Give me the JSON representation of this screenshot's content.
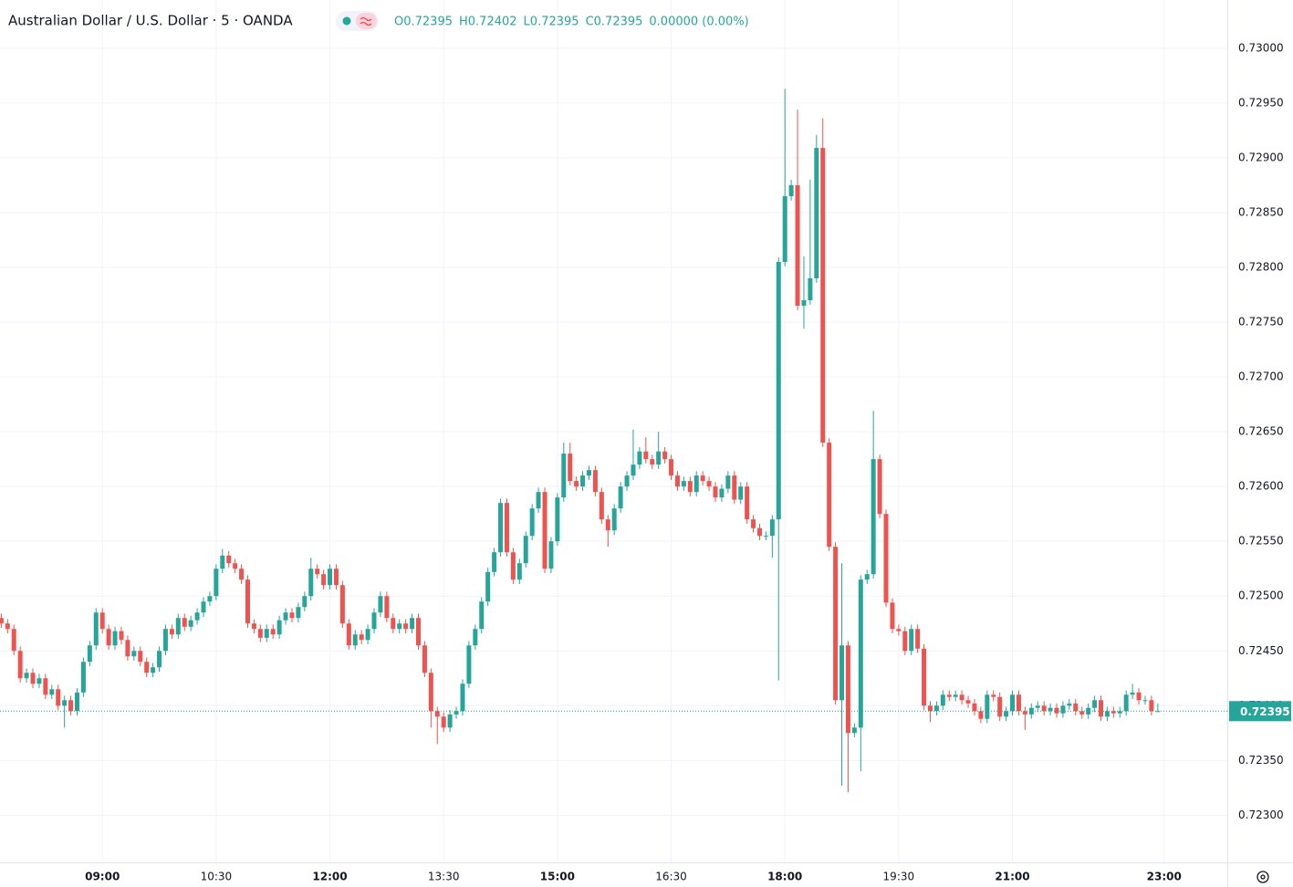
{
  "chart_data": {
    "type": "candlestick",
    "title": "Australian Dollar / U.S. Dollar · 5 · OANDA",
    "ohlc_labels": [
      "O",
      "H",
      "L",
      "C"
    ],
    "change": "0.00000 (0.00%)",
    "up_color": "#26a69a",
    "down_color": "#ef5350",
    "grid": true,
    "xlim": [
      "07:39",
      "23:50"
    ],
    "xticks": [
      "09:00",
      "10:30",
      "12:00",
      "13:30",
      "15:00",
      "16:30",
      "18:00",
      "19:30",
      "21:00",
      "23:00"
    ],
    "ylim": [
      0.72257,
      0.73044
    ],
    "yticks": [
      {
        "value": 0.723,
        "label": "0.72300"
      },
      {
        "value": 0.7235,
        "label": "0.72350"
      },
      {
        "value": 0.724,
        "label": "0.72400"
      },
      {
        "value": 0.7245,
        "label": "0.72450"
      },
      {
        "value": 0.725,
        "label": "0.72500"
      },
      {
        "value": 0.7255,
        "label": "0.72550"
      },
      {
        "value": 0.726,
        "label": "0.72600"
      },
      {
        "value": 0.7265,
        "label": "0.72650"
      },
      {
        "value": 0.727,
        "label": "0.72700"
      },
      {
        "value": 0.7275,
        "label": "0.72750"
      },
      {
        "value": 0.728,
        "label": "0.72800"
      },
      {
        "value": 0.7285,
        "label": "0.72850"
      },
      {
        "value": 0.729,
        "label": "0.72900"
      },
      {
        "value": 0.7295,
        "label": "0.72950"
      },
      {
        "value": 0.73,
        "label": "0.73000"
      }
    ],
    "x": [
      "07:40",
      "07:45",
      "07:50",
      "07:55",
      "08:00",
      "08:05",
      "08:10",
      "08:15",
      "08:20",
      "08:25",
      "08:30",
      "08:35",
      "08:40",
      "08:45",
      "08:50",
      "08:55",
      "09:00",
      "09:05",
      "09:10",
      "09:15",
      "09:20",
      "09:25",
      "09:30",
      "09:35",
      "09:40",
      "09:45",
      "09:50",
      "09:55",
      "10:00",
      "10:05",
      "10:10",
      "10:15",
      "10:20",
      "10:25",
      "10:30",
      "10:35",
      "10:40",
      "10:45",
      "10:50",
      "10:55",
      "11:00",
      "11:05",
      "11:10",
      "11:15",
      "11:20",
      "11:25",
      "11:30",
      "11:35",
      "11:40",
      "11:45",
      "11:50",
      "11:55",
      "12:00",
      "12:05",
      "12:10",
      "12:15",
      "12:20",
      "12:25",
      "12:30",
      "12:35",
      "12:40",
      "12:45",
      "12:50",
      "12:55",
      "13:00",
      "13:05",
      "13:10",
      "13:15",
      "13:20",
      "13:25",
      "13:30",
      "13:35",
      "13:40",
      "13:45",
      "13:50",
      "13:55",
      "14:00",
      "14:05",
      "14:10",
      "14:15",
      "14:20",
      "14:25",
      "14:30",
      "14:35",
      "14:40",
      "14:45",
      "14:50",
      "14:55",
      "15:00",
      "15:05",
      "15:10",
      "15:15",
      "15:20",
      "15:25",
      "15:30",
      "15:35",
      "15:40",
      "15:45",
      "15:50",
      "15:55",
      "16:00",
      "16:05",
      "16:10",
      "16:15",
      "16:20",
      "16:25",
      "16:30",
      "16:35",
      "16:40",
      "16:45",
      "16:50",
      "16:55",
      "17:00",
      "17:05",
      "17:10",
      "17:15",
      "17:20",
      "17:25",
      "17:30",
      "17:35",
      "17:40",
      "17:45",
      "17:50",
      "17:55",
      "18:00",
      "18:05",
      "18:10",
      "18:15",
      "18:20",
      "18:25",
      "18:30",
      "18:35",
      "18:40",
      "18:45",
      "18:50",
      "18:55",
      "19:00",
      "19:05",
      "19:10",
      "19:15",
      "19:20",
      "19:25",
      "19:30",
      "19:35",
      "19:40",
      "19:45",
      "19:50",
      "19:55",
      "20:00",
      "20:05",
      "20:10",
      "20:15",
      "20:20",
      "20:25",
      "20:30",
      "20:35",
      "20:40",
      "20:45",
      "20:50",
      "20:55",
      "21:00",
      "21:05",
      "21:10",
      "21:15",
      "21:20",
      "21:25",
      "21:30",
      "21:35",
      "21:40",
      "21:45",
      "21:50",
      "21:55",
      "22:00",
      "22:05",
      "22:10",
      "22:15",
      "22:20",
      "22:25",
      "22:30",
      "22:35",
      "22:40",
      "22:45",
      "22:50",
      "22:55"
    ],
    "open": [
      0.7248,
      0.72475,
      0.7247,
      0.7245,
      0.72425,
      0.7243,
      0.7242,
      0.72425,
      0.7241,
      0.72415,
      0.724,
      0.72405,
      0.72395,
      0.72412,
      0.7244,
      0.72455,
      0.72485,
      0.7247,
      0.72455,
      0.72468,
      0.7246,
      0.72445,
      0.7245,
      0.7244,
      0.7243,
      0.72435,
      0.7245,
      0.7247,
      0.72465,
      0.7248,
      0.72472,
      0.72478,
      0.72485,
      0.72495,
      0.725,
      0.72525,
      0.72537,
      0.7253,
      0.72525,
      0.72515,
      0.72475,
      0.7247,
      0.72462,
      0.7247,
      0.72465,
      0.72478,
      0.72485,
      0.7248,
      0.7249,
      0.725,
      0.72525,
      0.7252,
      0.7251,
      0.72525,
      0.7251,
      0.72475,
      0.72455,
      0.72465,
      0.7246,
      0.7247,
      0.72485,
      0.725,
      0.7248,
      0.7247,
      0.72475,
      0.7247,
      0.7248,
      0.72455,
      0.7243,
      0.72395,
      0.7239,
      0.7238,
      0.72392,
      0.72395,
      0.7242,
      0.72455,
      0.7247,
      0.72495,
      0.72522,
      0.7254,
      0.72585,
      0.7254,
      0.72515,
      0.7253,
      0.72555,
      0.7258,
      0.72595,
      0.72525,
      0.7255,
      0.7259,
      0.7263,
      0.72605,
      0.726,
      0.7261,
      0.72615,
      0.72595,
      0.7257,
      0.7256,
      0.7258,
      0.726,
      0.7261,
      0.7262,
      0.72632,
      0.72625,
      0.7262,
      0.72632,
      0.72625,
      0.7261,
      0.726,
      0.72605,
      0.72595,
      0.7261,
      0.72605,
      0.726,
      0.7259,
      0.72598,
      0.7261,
      0.72588,
      0.726,
      0.7257,
      0.72562,
      0.72555,
      0.72555,
      0.7257,
      0.72805,
      0.72865,
      0.72875,
      0.72765,
      0.7277,
      0.7279,
      0.72909,
      0.7264,
      0.72545,
      0.72405,
      0.72455,
      0.72375,
      0.7238,
      0.72515,
      0.7252,
      0.72625,
      0.72575,
      0.72494,
      0.7247,
      0.72468,
      0.7245,
      0.7247,
      0.72452,
      0.724,
      0.72395,
      0.724,
      0.7241,
      0.72408,
      0.7241,
      0.72405,
      0.72402,
      0.72395,
      0.72388,
      0.7241,
      0.72408,
      0.7239,
      0.72395,
      0.7241,
      0.72395,
      0.72392,
      0.72398,
      0.724,
      0.72395,
      0.72398,
      0.72393,
      0.724,
      0.72402,
      0.72395,
      0.72392,
      0.72398,
      0.72405,
      0.7239,
      0.72395,
      0.72393,
      0.72395,
      0.7241,
      0.72412,
      0.72405,
      0.72405,
      0.72395
    ],
    "high": [
      0.72484,
      0.72479,
      0.72474,
      0.72454,
      0.72434,
      0.72434,
      0.72429,
      0.72429,
      0.72419,
      0.72419,
      0.72409,
      0.72409,
      0.72416,
      0.72444,
      0.72459,
      0.72489,
      0.72489,
      0.72474,
      0.72472,
      0.72472,
      0.72464,
      0.72454,
      0.72454,
      0.72444,
      0.72439,
      0.72454,
      0.72474,
      0.72474,
      0.72484,
      0.72484,
      0.72482,
      0.72489,
      0.72499,
      0.72504,
      0.72529,
      0.72543,
      0.72541,
      0.72534,
      0.72529,
      0.72519,
      0.72479,
      0.72474,
      0.72474,
      0.72474,
      0.72482,
      0.72489,
      0.72489,
      0.72494,
      0.72504,
      0.72535,
      0.72529,
      0.72524,
      0.72529,
      0.72529,
      0.72514,
      0.72479,
      0.72469,
      0.72469,
      0.72474,
      0.72489,
      0.72504,
      0.72504,
      0.72484,
      0.72479,
      0.72479,
      0.72484,
      0.72484,
      0.72459,
      0.72434,
      0.72399,
      0.72394,
      0.72396,
      0.72399,
      0.72424,
      0.72459,
      0.72474,
      0.72499,
      0.72526,
      0.72544,
      0.72589,
      0.72589,
      0.72544,
      0.72534,
      0.72559,
      0.72584,
      0.72599,
      0.72599,
      0.72554,
      0.72594,
      0.7264,
      0.7264,
      0.72609,
      0.72614,
      0.72619,
      0.72619,
      0.72599,
      0.72574,
      0.72584,
      0.72604,
      0.72614,
      0.72652,
      0.72636,
      0.72645,
      0.72629,
      0.7265,
      0.72636,
      0.72629,
      0.72614,
      0.72609,
      0.72609,
      0.72614,
      0.72614,
      0.72609,
      0.72604,
      0.72602,
      0.72614,
      0.72614,
      0.72604,
      0.72604,
      0.72574,
      0.72566,
      0.72559,
      0.72574,
      0.72809,
      0.72963,
      0.7288,
      0.72944,
      0.7281,
      0.7288,
      0.72921,
      0.72936,
      0.72644,
      0.72549,
      0.7253,
      0.72459,
      0.72384,
      0.72519,
      0.72524,
      0.72669,
      0.72629,
      0.72579,
      0.72498,
      0.72474,
      0.72472,
      0.72474,
      0.72474,
      0.72456,
      0.72404,
      0.72404,
      0.72414,
      0.72414,
      0.72414,
      0.72414,
      0.72409,
      0.72406,
      0.72399,
      0.72414,
      0.72414,
      0.72412,
      0.72399,
      0.72414,
      0.72414,
      0.72399,
      0.72402,
      0.72404,
      0.72404,
      0.72402,
      0.72402,
      0.72404,
      0.72406,
      0.72406,
      0.72399,
      0.72402,
      0.72409,
      0.72409,
      0.72399,
      0.72399,
      0.72399,
      0.72414,
      0.7242,
      0.72416,
      0.72409,
      0.72409,
      0.72402
    ],
    "low": [
      0.72471,
      0.72466,
      0.72446,
      0.72421,
      0.72421,
      0.72416,
      0.72416,
      0.72406,
      0.72406,
      0.72396,
      0.7238,
      0.72391,
      0.72391,
      0.72408,
      0.72436,
      0.72451,
      0.72466,
      0.72451,
      0.72451,
      0.72456,
      0.72441,
      0.72441,
      0.72436,
      0.72426,
      0.72426,
      0.72431,
      0.72446,
      0.72461,
      0.72461,
      0.72468,
      0.72468,
      0.72474,
      0.72481,
      0.72491,
      0.72496,
      0.72521,
      0.72526,
      0.72521,
      0.72511,
      0.72471,
      0.72466,
      0.72458,
      0.72458,
      0.72461,
      0.72461,
      0.72474,
      0.72476,
      0.72476,
      0.72486,
      0.72496,
      0.72516,
      0.72506,
      0.72506,
      0.72506,
      0.72471,
      0.72451,
      0.72451,
      0.72456,
      0.72456,
      0.72466,
      0.72481,
      0.72476,
      0.72466,
      0.72466,
      0.72466,
      0.72466,
      0.72451,
      0.72426,
      0.7238,
      0.72365,
      0.72376,
      0.72376,
      0.72388,
      0.72391,
      0.72416,
      0.72451,
      0.72466,
      0.72491,
      0.72518,
      0.72536,
      0.72536,
      0.72511,
      0.72511,
      0.72526,
      0.72551,
      0.72576,
      0.72521,
      0.72521,
      0.72546,
      0.72586,
      0.72601,
      0.72596,
      0.72596,
      0.72606,
      0.72591,
      0.72566,
      0.72545,
      0.72556,
      0.72576,
      0.72596,
      0.72606,
      0.72616,
      0.72621,
      0.72616,
      0.72616,
      0.72621,
      0.72606,
      0.72596,
      0.72596,
      0.72591,
      0.72591,
      0.72601,
      0.72596,
      0.72586,
      0.72586,
      0.72594,
      0.72584,
      0.72584,
      0.72566,
      0.72558,
      0.72551,
      0.72551,
      0.72535,
      0.72423,
      0.72801,
      0.72861,
      0.72761,
      0.72744,
      0.72766,
      0.72786,
      0.72636,
      0.72541,
      0.72401,
      0.72327,
      0.72321,
      0.72371,
      0.7234,
      0.72511,
      0.72516,
      0.72571,
      0.7249,
      0.72466,
      0.72464,
      0.72446,
      0.72446,
      0.72448,
      0.72396,
      0.72385,
      0.72391,
      0.72396,
      0.72404,
      0.72404,
      0.72401,
      0.72398,
      0.72391,
      0.72384,
      0.72384,
      0.72404,
      0.72386,
      0.72386,
      0.72391,
      0.72391,
      0.72378,
      0.72388,
      0.72394,
      0.72391,
      0.72391,
      0.72389,
      0.72389,
      0.72396,
      0.72391,
      0.72388,
      0.72388,
      0.72394,
      0.72386,
      0.72386,
      0.72389,
      0.72389,
      0.72391,
      0.72406,
      0.72401,
      0.72401,
      0.72391,
      0.72395
    ],
    "close": [
      0.72475,
      0.7247,
      0.7245,
      0.72425,
      0.7243,
      0.7242,
      0.72425,
      0.7241,
      0.72415,
      0.724,
      0.72405,
      0.72395,
      0.72412,
      0.7244,
      0.72455,
      0.72485,
      0.7247,
      0.72455,
      0.72468,
      0.7246,
      0.72445,
      0.7245,
      0.7244,
      0.7243,
      0.72435,
      0.7245,
      0.7247,
      0.72465,
      0.7248,
      0.72472,
      0.72478,
      0.72485,
      0.72495,
      0.725,
      0.72525,
      0.72537,
      0.7253,
      0.72525,
      0.72515,
      0.72475,
      0.7247,
      0.72462,
      0.7247,
      0.72465,
      0.72478,
      0.72485,
      0.7248,
      0.7249,
      0.725,
      0.72525,
      0.7252,
      0.7251,
      0.72525,
      0.7251,
      0.72475,
      0.72455,
      0.72465,
      0.7246,
      0.7247,
      0.72485,
      0.725,
      0.7248,
      0.7247,
      0.72475,
      0.7247,
      0.7248,
      0.72455,
      0.7243,
      0.72395,
      0.7239,
      0.7238,
      0.72392,
      0.72395,
      0.7242,
      0.72455,
      0.7247,
      0.72495,
      0.72522,
      0.7254,
      0.72585,
      0.7254,
      0.72515,
      0.7253,
      0.72555,
      0.7258,
      0.72595,
      0.72525,
      0.7255,
      0.7259,
      0.7263,
      0.72605,
      0.726,
      0.7261,
      0.72615,
      0.72595,
      0.7257,
      0.7256,
      0.7258,
      0.726,
      0.7261,
      0.7262,
      0.72632,
      0.72625,
      0.7262,
      0.72632,
      0.72625,
      0.7261,
      0.726,
      0.72605,
      0.72595,
      0.7261,
      0.72605,
      0.726,
      0.7259,
      0.72598,
      0.7261,
      0.72588,
      0.726,
      0.7257,
      0.72562,
      0.72555,
      0.72555,
      0.7257,
      0.72805,
      0.72865,
      0.72875,
      0.72765,
      0.7277,
      0.7279,
      0.72909,
      0.7264,
      0.72545,
      0.72405,
      0.72455,
      0.72375,
      0.7238,
      0.72515,
      0.7252,
      0.72625,
      0.72575,
      0.72494,
      0.7247,
      0.72468,
      0.7245,
      0.7247,
      0.72452,
      0.724,
      0.72395,
      0.724,
      0.7241,
      0.72408,
      0.7241,
      0.72405,
      0.72402,
      0.72395,
      0.72388,
      0.7241,
      0.72408,
      0.7239,
      0.72395,
      0.7241,
      0.72395,
      0.72392,
      0.72398,
      0.724,
      0.72395,
      0.72398,
      0.72393,
      0.724,
      0.72402,
      0.72395,
      0.72392,
      0.72398,
      0.72405,
      0.7239,
      0.72395,
      0.72393,
      0.72395,
      0.7241,
      0.72412,
      0.72405,
      0.72405,
      0.72395,
      0.72395
    ]
  }
}
